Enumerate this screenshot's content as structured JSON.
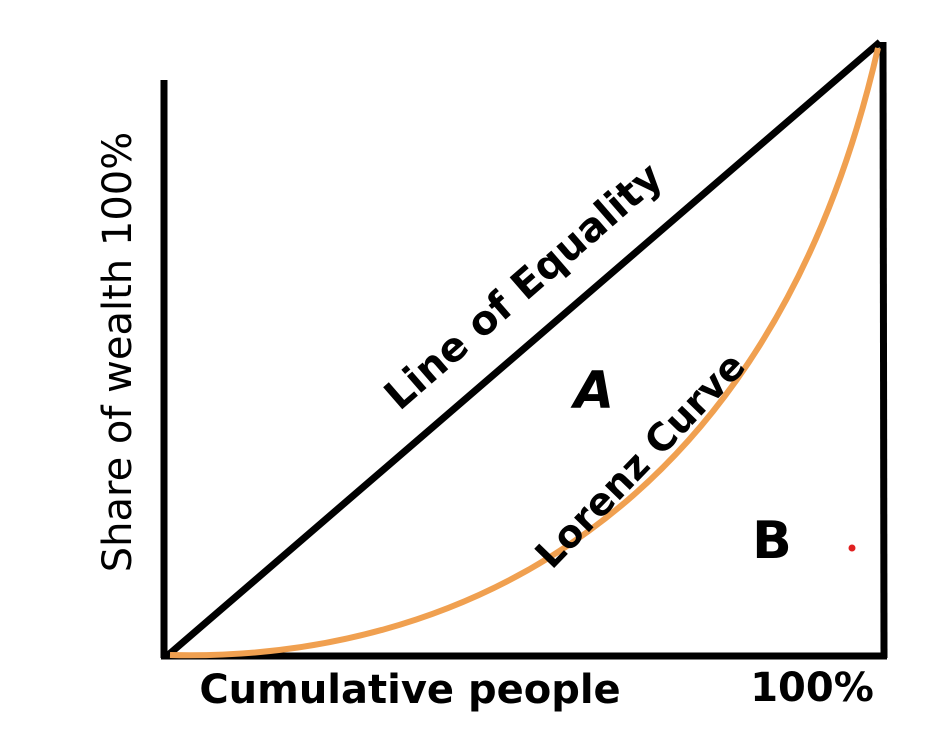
{
  "diagram": {
    "y_axis_label": "Share of wealth 100%",
    "x_axis_label": "Cumulative people",
    "x_axis_end_label": "100%",
    "equality_line_label": "Line of Equality",
    "curve_label": "Lorenz Curve",
    "region_a": "A",
    "region_b": "B"
  }
}
